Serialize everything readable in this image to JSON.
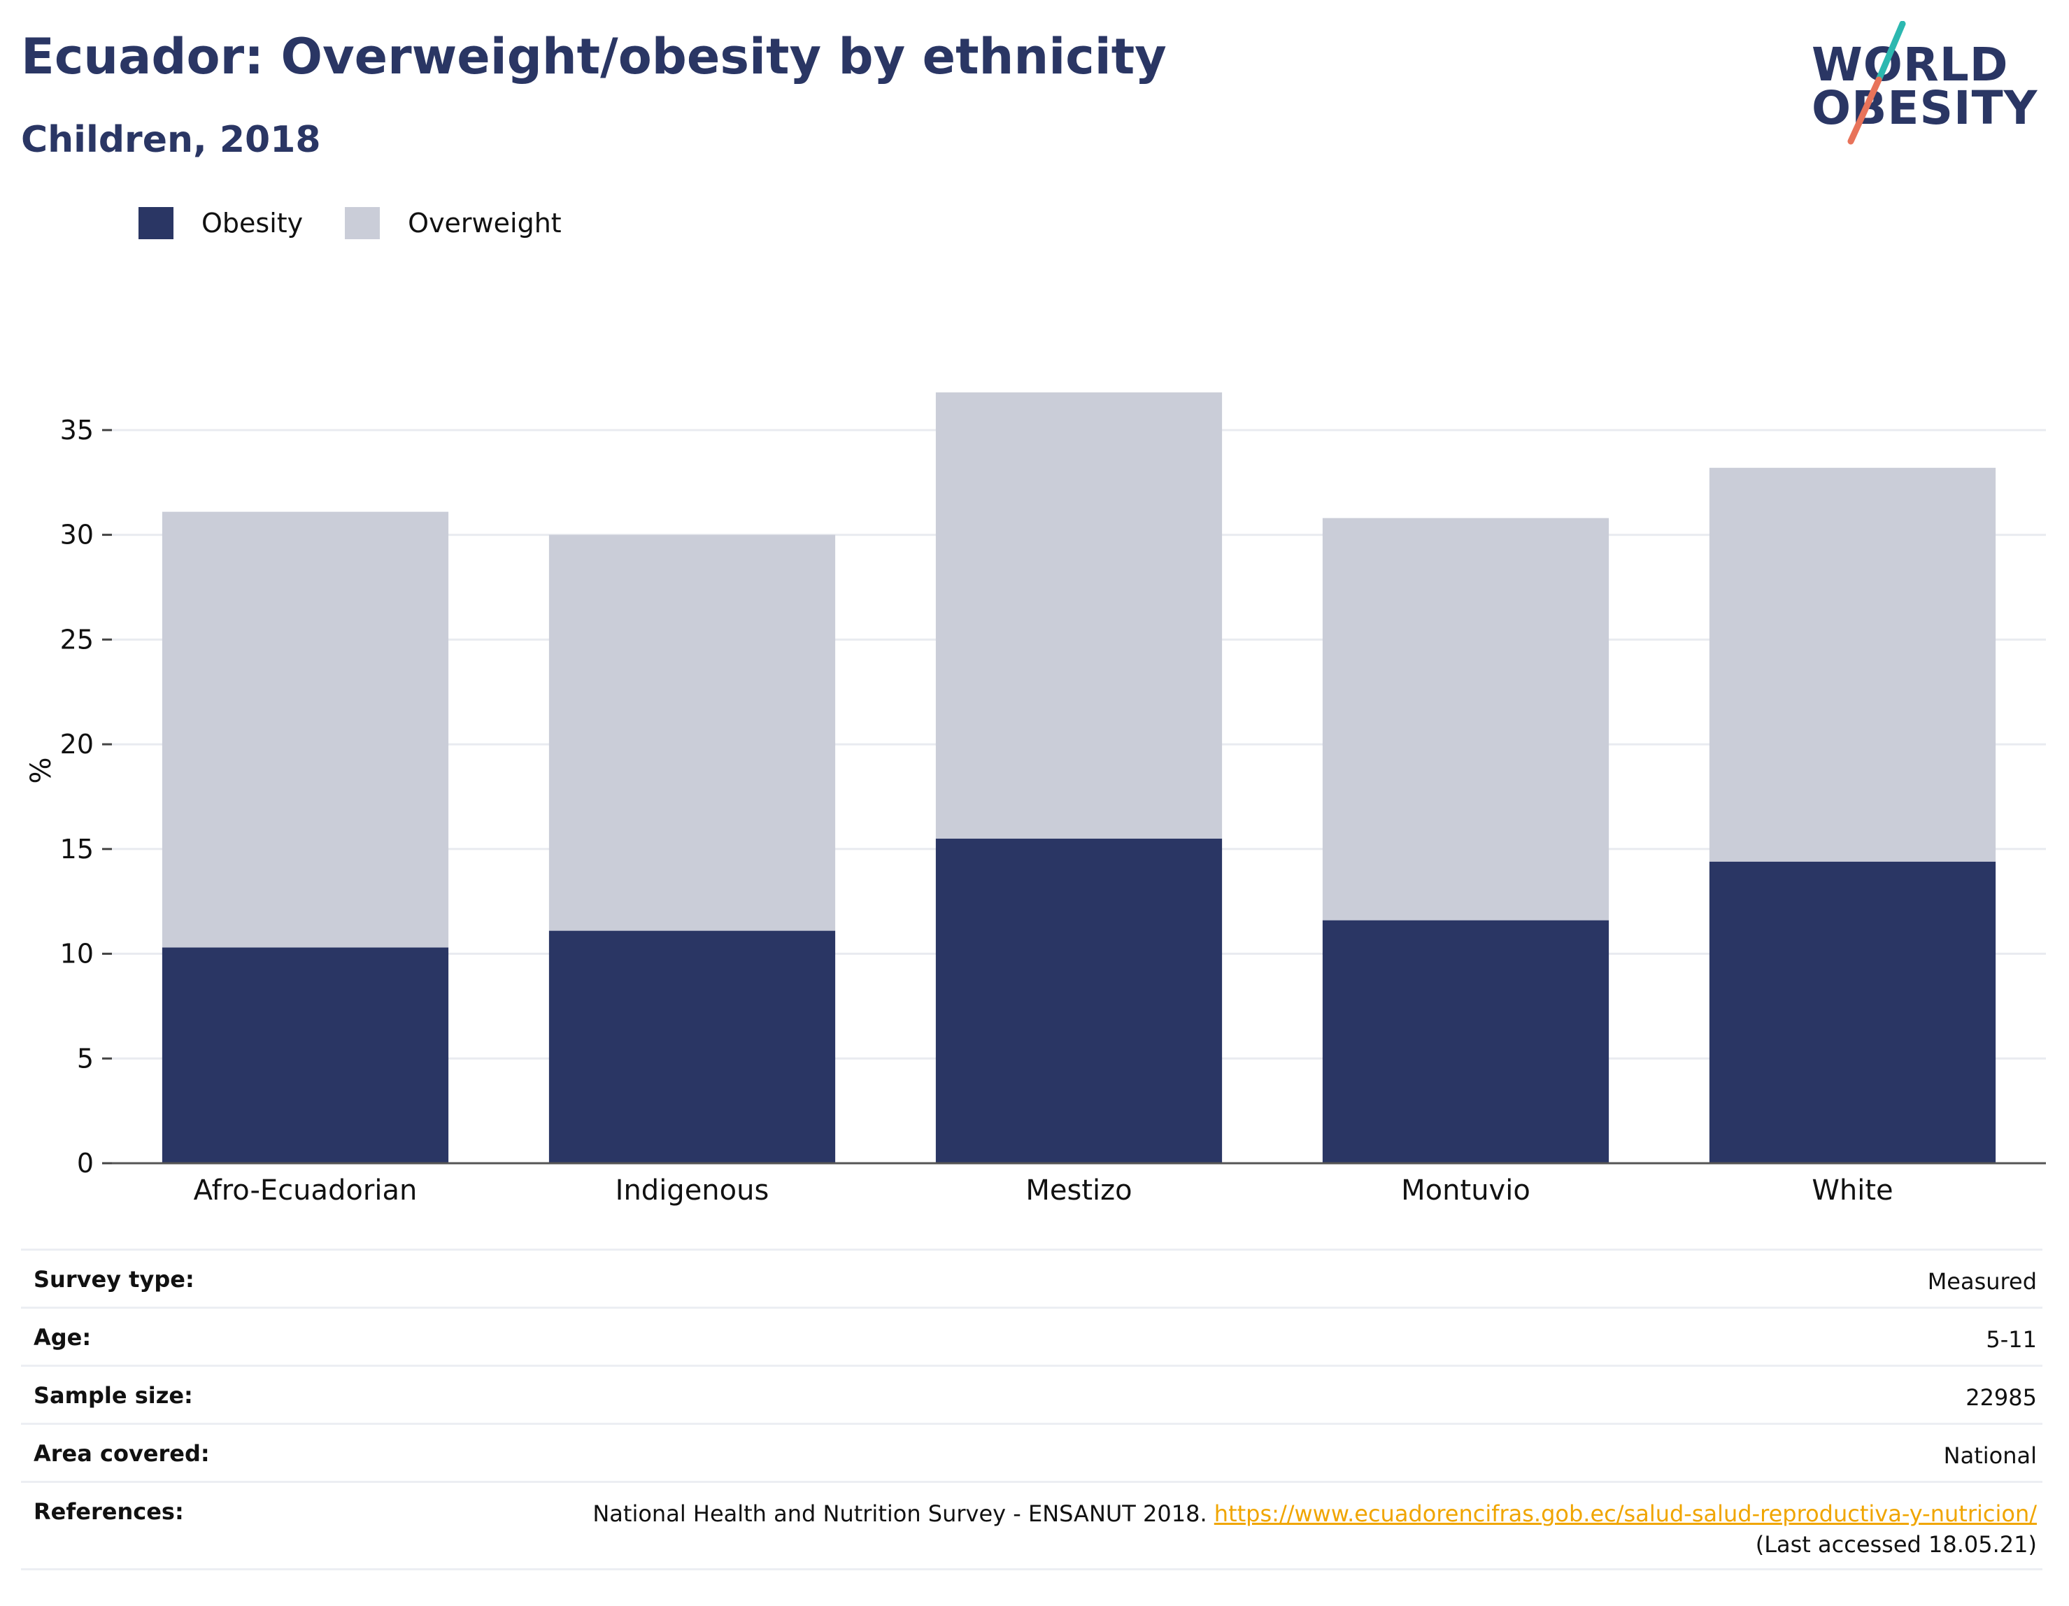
{
  "header": {
    "title": "Ecuador: Overweight/obesity by ethnicity",
    "subtitle": "Children, 2018"
  },
  "logo": {
    "line1": "WORLD",
    "line2": "OBESITY",
    "accent_teal": "#2cb8b0",
    "accent_coral": "#e8735a"
  },
  "colors": {
    "obesity": "#2a3664",
    "overweight": "#cacdd8",
    "title": "#2a3664",
    "link": "#f0a500"
  },
  "chart_data": {
    "type": "bar",
    "stacked": true,
    "categories": [
      "Afro-Ecuadorian",
      "Indigenous",
      "Mestizo",
      "Montuvio",
      "White"
    ],
    "series": [
      {
        "name": "Obesity",
        "values": [
          10.3,
          11.1,
          15.5,
          11.6,
          14.4
        ]
      },
      {
        "name": "Overweight",
        "values": [
          20.8,
          18.9,
          21.3,
          19.2,
          18.8
        ]
      }
    ],
    "ylabel": "%",
    "xlabel": "",
    "ylim": [
      0,
      37.5
    ],
    "yticks": [
      0,
      5,
      10,
      15,
      20,
      25,
      30,
      35
    ],
    "grid": true,
    "legend_position": "top-left"
  },
  "info": {
    "survey_type": {
      "label": "Survey type:",
      "value": "Measured"
    },
    "age": {
      "label": "Age:",
      "value": "5-11"
    },
    "sample_size": {
      "label": "Sample size:",
      "value": "22985"
    },
    "area_covered": {
      "label": "Area covered:",
      "value": "National"
    },
    "references": {
      "label": "References:",
      "text": "National Health and Nutrition Survey - ENSANUT 2018.",
      "link": "https://www.ecuadorencifras.gob.ec/salud-salud-reproductiva-y-nutricion/",
      "accessed": "(Last accessed 18.05.21)"
    }
  }
}
